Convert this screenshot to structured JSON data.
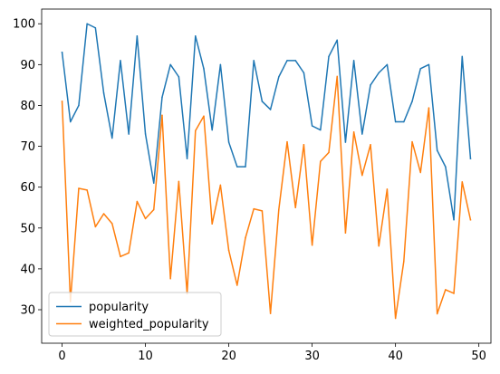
{
  "chart_data": {
    "type": "line",
    "title": "",
    "xlabel": "",
    "ylabel": "",
    "xlim": [
      -2.45,
      51.45
    ],
    "ylim": [
      21.8,
      103.6
    ],
    "xticks": [
      0,
      10,
      20,
      30,
      40,
      50
    ],
    "yticks": [
      30,
      40,
      50,
      60,
      70,
      80,
      90,
      100
    ],
    "grid": false,
    "legend_position": "lower-left",
    "x": [
      0,
      1,
      2,
      3,
      4,
      5,
      6,
      7,
      8,
      9,
      10,
      11,
      12,
      13,
      14,
      15,
      16,
      17,
      18,
      19,
      20,
      21,
      22,
      23,
      24,
      25,
      26,
      27,
      28,
      29,
      30,
      31,
      32,
      33,
      34,
      35,
      36,
      37,
      38,
      39,
      40,
      41,
      42,
      43,
      44,
      45,
      46,
      47,
      48,
      49
    ],
    "series": [
      {
        "name": "popularity",
        "color": "#1f77b4",
        "values": [
          93,
          76,
          80,
          100,
          99,
          83,
          72,
          91,
          73,
          97,
          73,
          61,
          82,
          90,
          87,
          67,
          97,
          89,
          74,
          90,
          71,
          65,
          65,
          91,
          81,
          79,
          87,
          91,
          91,
          88,
          75,
          74,
          92,
          96,
          71,
          91,
          73,
          85,
          88,
          90,
          76,
          76,
          81,
          89,
          90,
          69,
          65,
          52,
          92,
          67
        ]
      },
      {
        "name": "weighted_popularity",
        "color": "#ff7f0e",
        "values": [
          81,
          32,
          59.7,
          59.3,
          50.3,
          53.5,
          51.1,
          43,
          43.9,
          56.5,
          52.3,
          54.5,
          77.6,
          37.6,
          61.4,
          33.9,
          73.8,
          77.4,
          51,
          60.5,
          44.5,
          36,
          47.6,
          54.7,
          54.2,
          29.1,
          54.5,
          71.1,
          55,
          70.4,
          45.8,
          66.3,
          68.5,
          87.1,
          48.8,
          73.5,
          62.9,
          70.4,
          45.6,
          59.5,
          27.9,
          41.9,
          71.1,
          63.6,
          79.4,
          29,
          34.9,
          34,
          61.3,
          52
        ]
      }
    ]
  }
}
